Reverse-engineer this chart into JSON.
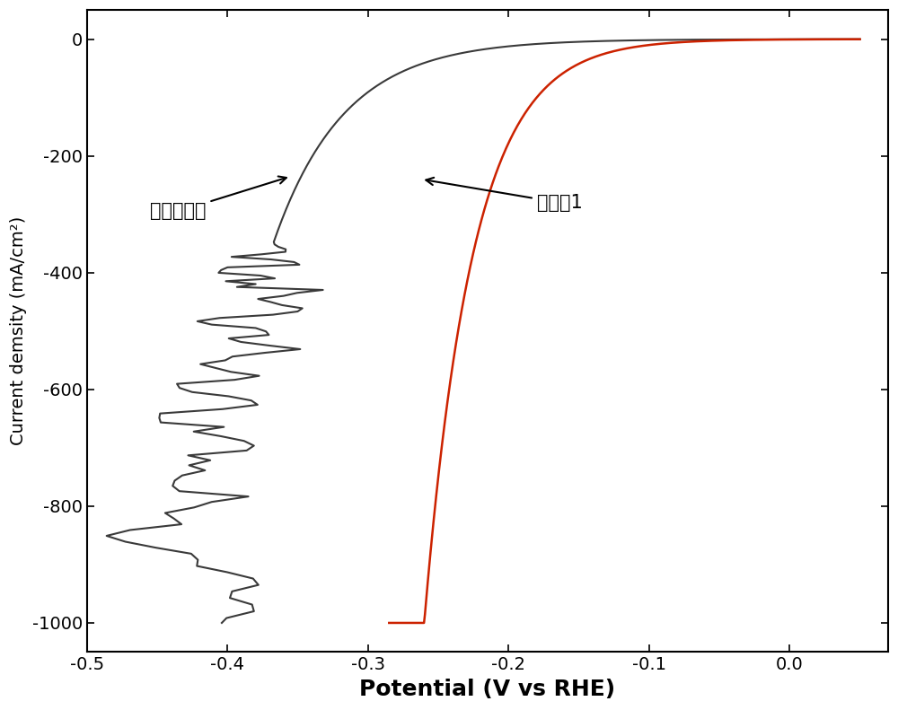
{
  "xlabel": "Potential (V vs RHE)",
  "ylabel": "Current demsity (mA/cm²)",
  "xlim": [
    -0.5,
    0.07
  ],
  "ylim": [
    -1050,
    50
  ],
  "yticks": [
    0,
    -200,
    -400,
    -600,
    -800,
    -1000
  ],
  "xticks": [
    -0.5,
    -0.4,
    -0.3,
    -0.2,
    -0.1,
    0.0
  ],
  "gray_color": "#3a3a3a",
  "red_color": "#cc2200",
  "background_color": "#ffffff",
  "annotation_gray": "雷尼镖电极",
  "annotation_red": "实施例1",
  "xlabel_fontsize": 18,
  "ylabel_fontsize": 14,
  "tick_fontsize": 14
}
